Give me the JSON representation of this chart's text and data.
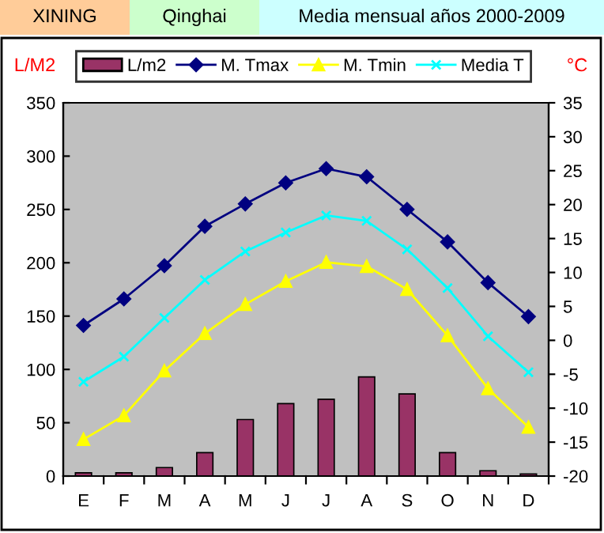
{
  "chart_data": {
    "type": "bar",
    "title": "XINING",
    "subtitle": "Qinghai",
    "annotations": [
      "Media mensual años 2000-2009"
    ],
    "ylabel": "L/M2",
    "y2label": "°C",
    "categories": [
      "E",
      "F",
      "M",
      "A",
      "M",
      "J",
      "J",
      "A",
      "S",
      "O",
      "N",
      "D"
    ],
    "series": [
      {
        "name": "L/m2",
        "color": "#993366",
        "values": [
          3,
          3,
          8,
          22,
          53,
          68,
          72,
          93,
          77,
          22,
          5,
          2
        ]
      },
      {
        "name": "M. Tmax",
        "type": "line",
        "axis": "y2",
        "color": "#000080",
        "marker": "diamond",
        "values": [
          2.2,
          6.1,
          11.0,
          16.8,
          20.1,
          23.2,
          25.3,
          24.1,
          19.3,
          14.5,
          8.5,
          3.5
        ]
      },
      {
        "name": "M. Tmin",
        "type": "line",
        "axis": "y2",
        "color": "#ffff00",
        "marker": "triangle",
        "values": [
          -14.6,
          -11.1,
          -4.5,
          1.0,
          5.3,
          8.7,
          11.5,
          10.9,
          7.5,
          0.7,
          -7.1,
          -12.8
        ]
      },
      {
        "name": "Media T",
        "type": "line",
        "axis": "y2",
        "color": "#00ffff",
        "marker": "cross",
        "values": [
          -6.1,
          -2.4,
          3.3,
          8.9,
          13.1,
          15.9,
          18.4,
          17.6,
          13.4,
          7.7,
          0.6,
          -4.7
        ]
      }
    ],
    "ylim": [
      0,
      350
    ],
    "yticks": [
      0,
      50,
      100,
      150,
      200,
      250,
      300,
      350
    ],
    "y2lim": [
      -20,
      35
    ],
    "y2ticks": [
      -20,
      -15,
      -10,
      -5,
      0,
      5,
      10,
      15,
      20,
      25,
      30,
      35
    ],
    "grid": false,
    "legend": "top"
  }
}
